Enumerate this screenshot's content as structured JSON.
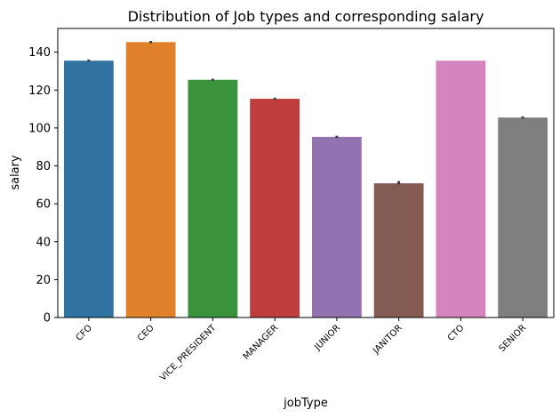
{
  "chart_data": {
    "type": "bar",
    "title": "Distribution of Job types and corresponding salary",
    "xlabel": "jobType",
    "ylabel": "salary",
    "ylim": [
      0,
      152.5
    ],
    "yticks": [
      0,
      20,
      40,
      60,
      80,
      100,
      120,
      140
    ],
    "grid": false,
    "categories": [
      "CFO",
      "CEO",
      "VICE_PRESIDENT",
      "MANAGER",
      "JUNIOR",
      "JANITOR",
      "CTO",
      "SENIOR"
    ],
    "values": [
      135.5,
      145.3,
      125.4,
      115.4,
      95.3,
      70.8,
      135.5,
      105.5
    ],
    "error_bars": [
      [
        134.9,
        136.1
      ],
      [
        144.7,
        145.9
      ],
      [
        124.8,
        126.0
      ],
      [
        114.8,
        116.0
      ],
      [
        94.7,
        95.9
      ],
      [
        70.2,
        72.0
      ],
      [
        135.5,
        135.5
      ],
      [
        104.9,
        106.1
      ]
    ],
    "colors": [
      "#3274a1",
      "#e1812c",
      "#3a923a",
      "#c03d3e",
      "#9372b2",
      "#845b53",
      "#d684bd",
      "#7f7f7f"
    ]
  }
}
